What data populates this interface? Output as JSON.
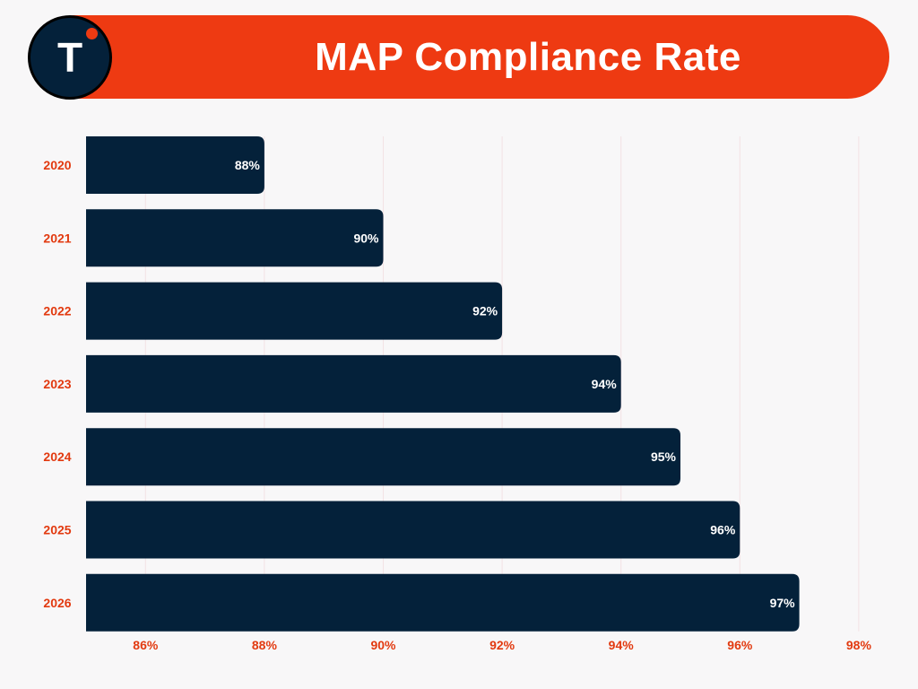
{
  "header": {
    "logo_letter": "T"
  },
  "colors": {
    "accent": "#ee3a12",
    "bar": "#04213a",
    "axis_text": "#e23a10",
    "grid": "#f3e2e4",
    "background": "#f8f7f8"
  },
  "chart_data": {
    "type": "bar",
    "orientation": "horizontal",
    "title": "MAP Compliance Rate",
    "categories": [
      "2020",
      "2021",
      "2022",
      "2023",
      "2024",
      "2025",
      "2026"
    ],
    "values": [
      88,
      90,
      92,
      94,
      95,
      96,
      97
    ],
    "data_labels": [
      "88%",
      "90%",
      "92%",
      "94%",
      "95%",
      "96%",
      "97%"
    ],
    "x_ticks": [
      86,
      88,
      90,
      92,
      94,
      96,
      98
    ],
    "x_tick_labels": [
      "86%",
      "88%",
      "90%",
      "92%",
      "94%",
      "96%",
      "98%"
    ],
    "xlim": [
      85,
      98
    ],
    "xlabel": "",
    "ylabel": "",
    "grid": true,
    "legend": "none"
  }
}
